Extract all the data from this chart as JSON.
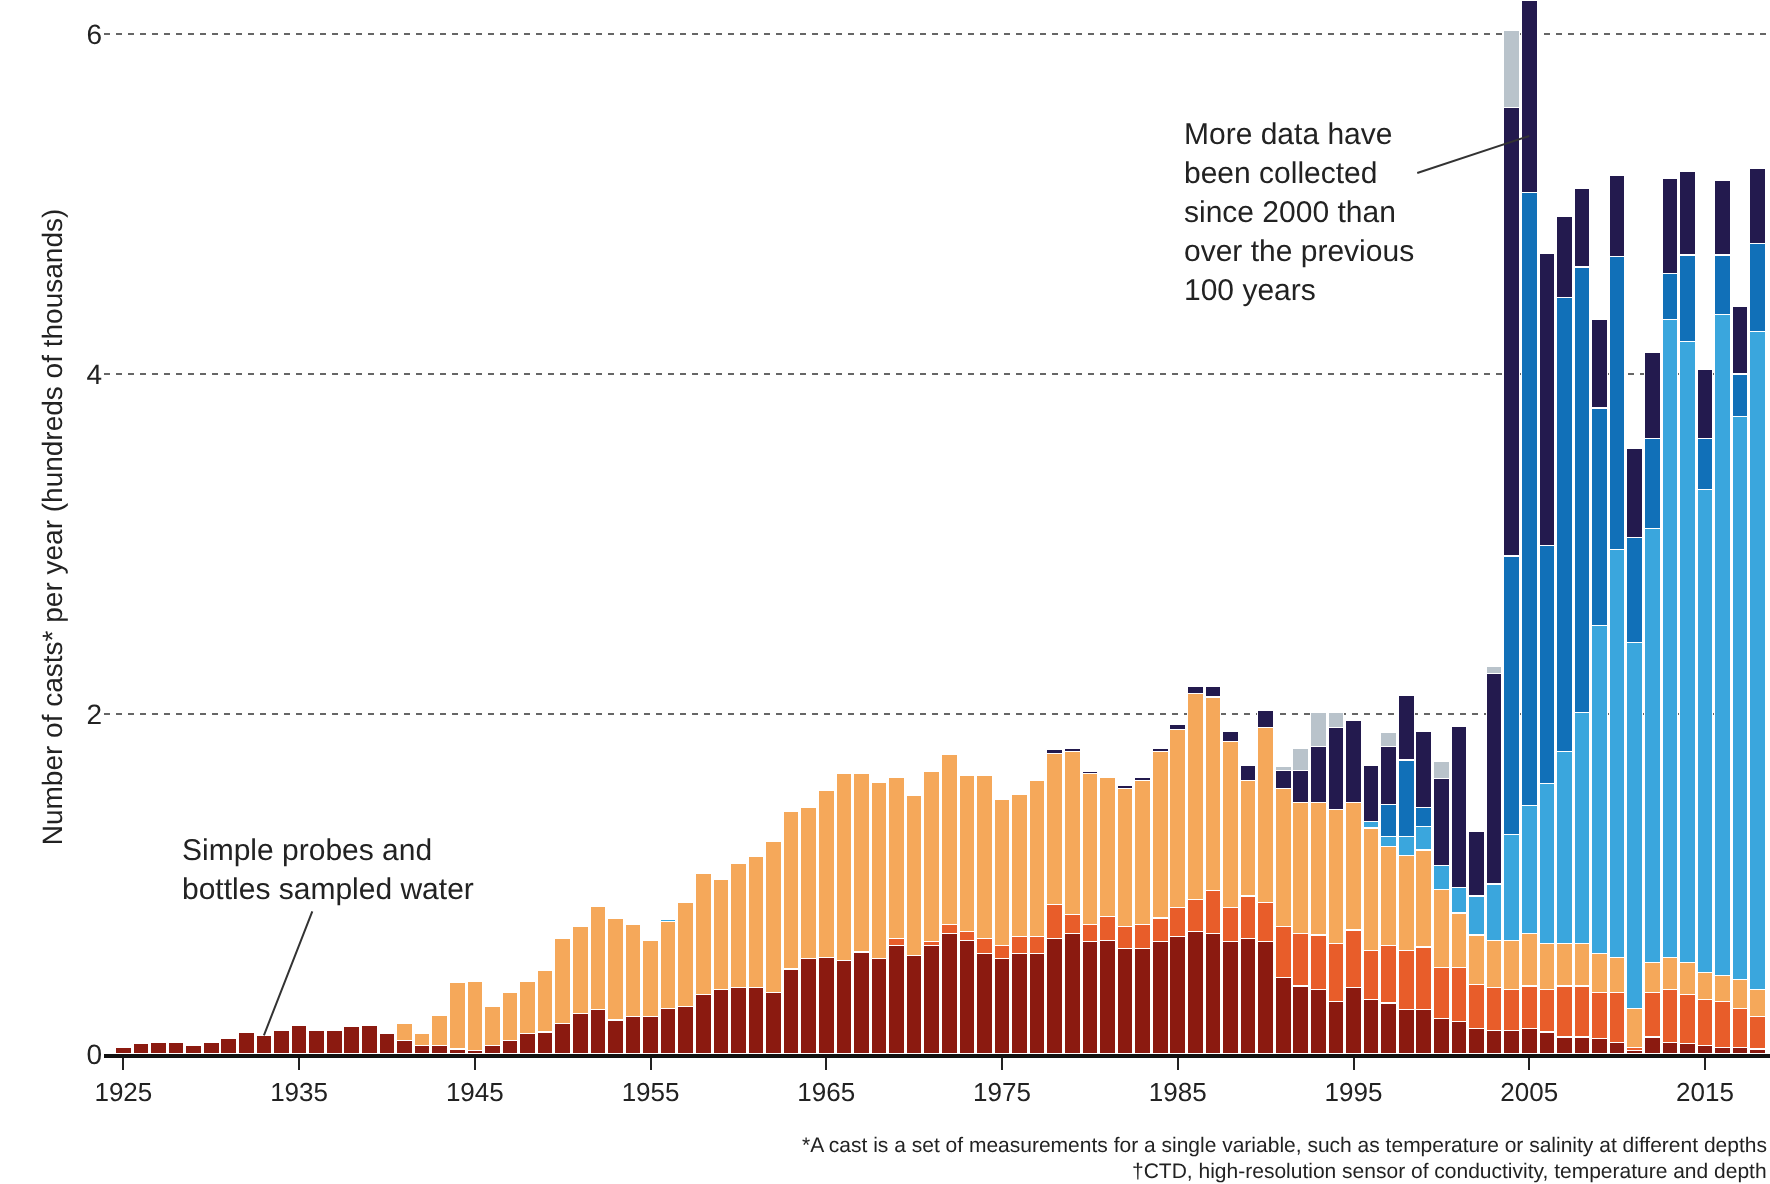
{
  "chart_data": {
    "type": "bar",
    "stacked": true,
    "ylabel": "Number of casts* per year (hundreds of thousands)",
    "x": [
      1925,
      1926,
      1927,
      1928,
      1929,
      1930,
      1931,
      1932,
      1933,
      1934,
      1935,
      1936,
      1937,
      1938,
      1939,
      1940,
      1941,
      1942,
      1943,
      1944,
      1945,
      1946,
      1947,
      1948,
      1949,
      1950,
      1951,
      1952,
      1953,
      1954,
      1955,
      1956,
      1957,
      1958,
      1959,
      1960,
      1961,
      1962,
      1963,
      1964,
      1965,
      1966,
      1967,
      1968,
      1969,
      1970,
      1971,
      1972,
      1973,
      1974,
      1975,
      1976,
      1977,
      1978,
      1979,
      1980,
      1981,
      1982,
      1983,
      1984,
      1985,
      1986,
      1987,
      1988,
      1989,
      1990,
      1991,
      1992,
      1993,
      1994,
      1995,
      1996,
      1997,
      1998,
      1999,
      2000,
      2001,
      2002,
      2003,
      2004,
      2005,
      2006,
      2007,
      2008,
      2009,
      2010,
      2011,
      2012,
      2013,
      2014,
      2015,
      2016,
      2017,
      2018
    ],
    "xlim": [
      1923.9,
      2018.7
    ],
    "xticks": [
      1925,
      1935,
      1945,
      1955,
      1965,
      1975,
      1985,
      1995,
      2005,
      2015
    ],
    "ylim": [
      0,
      6.2
    ],
    "yticks": [
      0,
      2,
      4,
      6
    ],
    "grid": "y",
    "series": [
      {
        "color": "#8b1a10",
        "values": [
          0.04,
          0.06,
          0.07,
          0.07,
          0.05,
          0.07,
          0.09,
          0.13,
          0.11,
          0.14,
          0.17,
          0.14,
          0.14,
          0.16,
          0.17,
          0.12,
          0.08,
          0.05,
          0.05,
          0.03,
          0.02,
          0.05,
          0.08,
          0.12,
          0.13,
          0.18,
          0.24,
          0.26,
          0.2,
          0.22,
          0.22,
          0.27,
          0.28,
          0.35,
          0.38,
          0.39,
          0.39,
          0.36,
          0.5,
          0.56,
          0.57,
          0.55,
          0.6,
          0.56,
          0.64,
          0.58,
          0.64,
          0.71,
          0.67,
          0.59,
          0.56,
          0.59,
          0.59,
          0.68,
          0.71,
          0.66,
          0.67,
          0.62,
          0.62,
          0.66,
          0.69,
          0.72,
          0.71,
          0.66,
          0.68,
          0.66,
          0.45,
          0.4,
          0.38,
          0.31,
          0.39,
          0.32,
          0.3,
          0.26,
          0.26,
          0.21,
          0.19,
          0.15,
          0.14,
          0.14,
          0.15,
          0.13,
          0.1,
          0.1,
          0.09,
          0.07,
          0.02,
          0.1,
          0.07,
          0.06,
          0.05,
          0.04,
          0.04,
          0.03
        ]
      },
      {
        "color": "#e85d2a",
        "values": [
          0,
          0,
          0,
          0,
          0,
          0,
          0,
          0,
          0,
          0,
          0,
          0,
          0,
          0,
          0,
          0,
          0,
          0,
          0,
          0,
          0,
          0,
          0,
          0,
          0,
          0,
          0,
          0,
          0,
          0,
          0,
          0,
          0,
          0,
          0,
          0,
          0,
          0,
          0,
          0,
          0,
          0,
          0,
          0,
          0.04,
          0,
          0.02,
          0.05,
          0.05,
          0.09,
          0.08,
          0.1,
          0.1,
          0.2,
          0.11,
          0.1,
          0.14,
          0.13,
          0.14,
          0.14,
          0.17,
          0.19,
          0.25,
          0.2,
          0.25,
          0.23,
          0.3,
          0.31,
          0.32,
          0.34,
          0.34,
          0.29,
          0.34,
          0.35,
          0.37,
          0.3,
          0.32,
          0.26,
          0.25,
          0.24,
          0.25,
          0.25,
          0.3,
          0.3,
          0.27,
          0.29,
          0.02,
          0.26,
          0.31,
          0.29,
          0.27,
          0.27,
          0.23,
          0.19
        ]
      },
      {
        "color": "#f5a85a",
        "values": [
          0,
          0,
          0,
          0,
          0,
          0,
          0,
          0,
          0,
          0,
          0,
          0,
          0,
          0,
          0,
          0,
          0.1,
          0.07,
          0.18,
          0.39,
          0.41,
          0.23,
          0.28,
          0.31,
          0.36,
          0.5,
          0.51,
          0.61,
          0.6,
          0.54,
          0.45,
          0.51,
          0.61,
          0.71,
          0.65,
          0.73,
          0.77,
          0.89,
          0.93,
          0.89,
          0.98,
          1.1,
          1.05,
          1.04,
          0.95,
          0.94,
          1.0,
          1.0,
          0.92,
          0.96,
          0.86,
          0.84,
          0.92,
          0.89,
          0.96,
          0.89,
          0.82,
          0.81,
          0.85,
          0.98,
          1.05,
          1.21,
          1.14,
          0.98,
          0.68,
          1.03,
          0.81,
          0.77,
          0.78,
          0.79,
          0.75,
          0.72,
          0.58,
          0.56,
          0.57,
          0.46,
          0.32,
          0.29,
          0.28,
          0.29,
          0.31,
          0.27,
          0.25,
          0.25,
          0.23,
          0.21,
          0.23,
          0.18,
          0.19,
          0.19,
          0.16,
          0.15,
          0.17,
          0.16
        ]
      },
      {
        "color": "#3aa6dd",
        "values": [
          0,
          0,
          0,
          0,
          0,
          0,
          0,
          0,
          0,
          0,
          0,
          0,
          0,
          0,
          0,
          0,
          0,
          0,
          0,
          0,
          0,
          0,
          0,
          0,
          0,
          0,
          0,
          0,
          0,
          0,
          0,
          0.01,
          0,
          0,
          0,
          0,
          0,
          0,
          0,
          0,
          0,
          0,
          0,
          0,
          0,
          0,
          0,
          0,
          0,
          0,
          0,
          0,
          0,
          0,
          0,
          0,
          0,
          0,
          0,
          0,
          0,
          0,
          0,
          0,
          0,
          0,
          0,
          0,
          0,
          0,
          0,
          0.04,
          0.06,
          0.11,
          0.14,
          0.14,
          0.15,
          0.23,
          0.33,
          0.62,
          0.75,
          0.94,
          1.13,
          1.36,
          1.93,
          2.4,
          2.15,
          2.55,
          3.75,
          3.65,
          2.84,
          3.89,
          3.31,
          3.87
        ]
      },
      {
        "color": "#1170b8",
        "values": [
          0,
          0,
          0,
          0,
          0,
          0,
          0,
          0,
          0,
          0,
          0,
          0,
          0,
          0,
          0,
          0,
          0,
          0,
          0,
          0,
          0,
          0,
          0,
          0,
          0,
          0,
          0,
          0,
          0,
          0,
          0,
          0,
          0,
          0,
          0,
          0,
          0,
          0,
          0,
          0,
          0,
          0,
          0,
          0,
          0,
          0,
          0,
          0,
          0,
          0,
          0,
          0,
          0,
          0,
          0,
          0,
          0,
          0,
          0,
          0,
          0,
          0,
          0,
          0,
          0,
          0,
          0,
          0,
          0,
          0,
          0,
          0,
          0.19,
          0.45,
          0.11,
          0,
          0,
          0,
          0,
          1.64,
          3.61,
          1.4,
          2.67,
          2.62,
          1.28,
          1.72,
          0.62,
          0.53,
          0.27,
          0.51,
          0.3,
          0.35,
          0.25,
          0.52
        ]
      },
      {
        "color": "#231a4e",
        "values": [
          0,
          0,
          0,
          0,
          0,
          0,
          0,
          0,
          0,
          0,
          0,
          0,
          0,
          0,
          0,
          0,
          0,
          0,
          0,
          0,
          0,
          0,
          0,
          0,
          0,
          0,
          0,
          0,
          0,
          0,
          0,
          0,
          0,
          0,
          0,
          0,
          0,
          0,
          0,
          0,
          0,
          0,
          0,
          0,
          0,
          0,
          0,
          0,
          0,
          0,
          0,
          0,
          0,
          0.02,
          0.02,
          0.01,
          null,
          0.02,
          0.02,
          0.02,
          0.03,
          0.04,
          0.06,
          0.06,
          0.09,
          0.1,
          0.11,
          0.19,
          0.33,
          0.48,
          0.48,
          0.33,
          0.34,
          0.38,
          0.45,
          0.51,
          0.95,
          0.38,
          1.24,
          2.64,
          1.13,
          1.72,
          0.48,
          0.46,
          0.52,
          0.48,
          0.52,
          0.51,
          0.56,
          0.49,
          0.41,
          0.44,
          0.4,
          0.44
        ]
      },
      {
        "color": "#b9c3cb",
        "values": [
          0,
          0,
          0,
          0,
          0,
          0,
          0,
          0,
          0,
          0,
          0,
          0,
          0,
          0,
          0,
          0,
          0,
          0,
          0,
          0,
          0,
          0,
          0,
          0,
          0,
          0,
          0,
          0,
          0,
          0,
          0,
          0,
          0,
          0,
          0,
          0,
          0,
          0,
          0,
          0,
          0,
          0,
          0,
          0,
          0,
          0,
          0,
          0,
          0,
          0,
          0,
          0,
          0,
          0,
          0,
          0,
          0,
          0,
          0,
          0,
          0,
          0,
          0,
          0,
          0,
          0,
          0.02,
          0.13,
          0.2,
          0.09,
          null,
          0,
          0.08,
          0,
          0,
          0.1,
          0,
          0,
          0.04,
          0.45,
          0,
          0,
          0,
          0,
          0,
          0,
          0,
          0,
          0,
          0,
          0,
          0,
          0,
          0
        ]
      }
    ],
    "annotations": [
      {
        "text": "Simple probes and bottles sampled water",
        "x": 1933,
        "y": 0.11
      },
      {
        "text": "More data have been collected since 2000 than over the previous 100 years",
        "x": 2005,
        "y": 5.4
      },
      "*A cast is a set of measurements for a single variable, such as temperature or salinity at different depths",
      "†CTD, high-resolution sensor of conductivity, temperature and depth"
    ]
  }
}
